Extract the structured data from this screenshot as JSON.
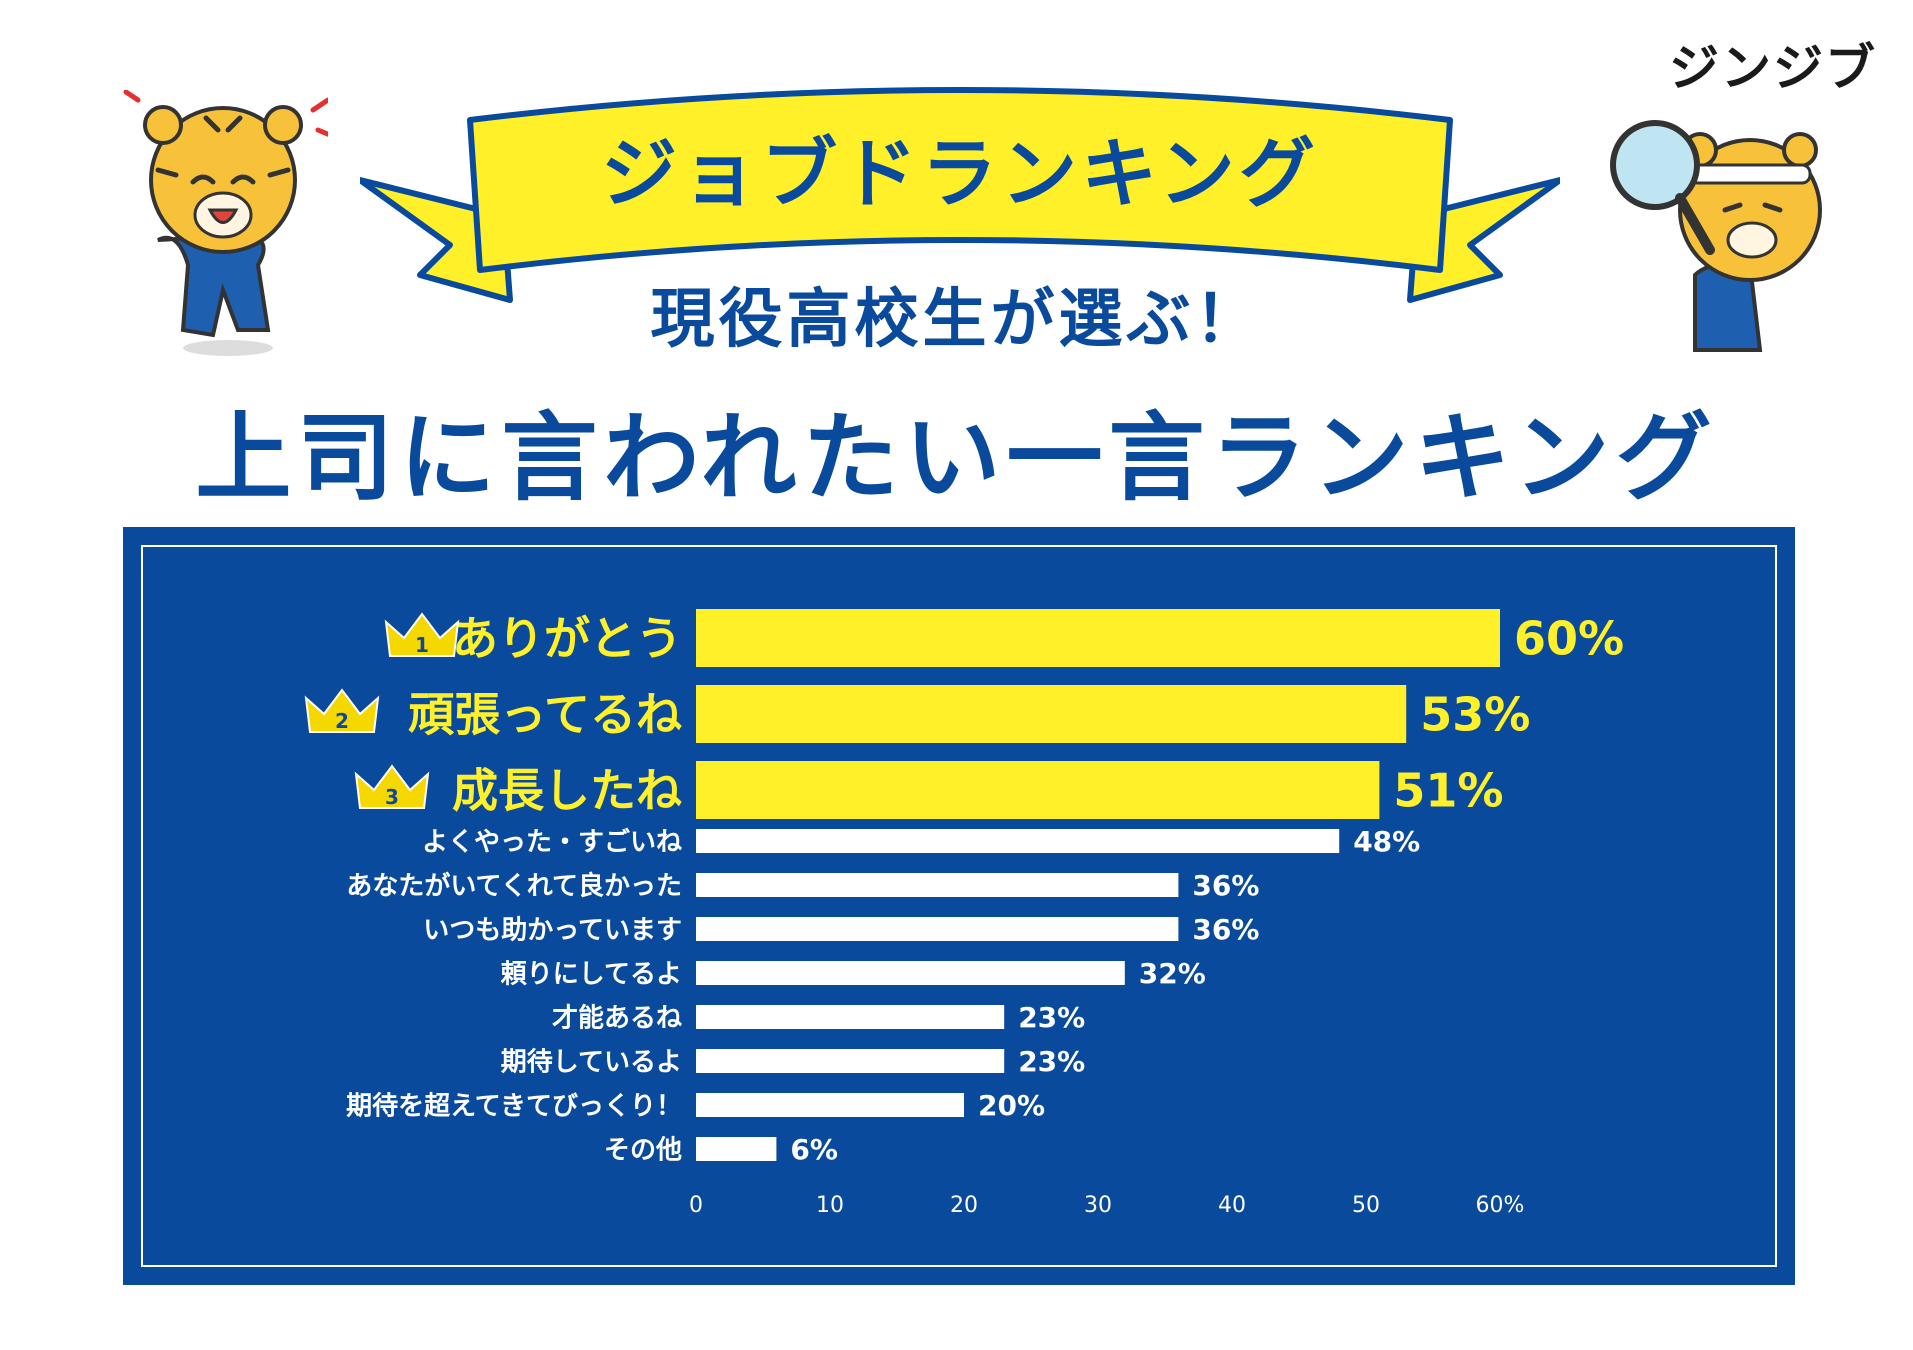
{
  "brand": "ジンジブ",
  "banner": {
    "text": "ジョブドランキング"
  },
  "subtitle": "現役高校生が選ぶ！",
  "title": "上司に言われたい一言ランキング",
  "colors": {
    "navy": "#0a4a9c",
    "yellow": "#fff02a",
    "white": "#ffffff",
    "crown": "#f5d800"
  },
  "chart_data": {
    "type": "bar",
    "orientation": "horizontal",
    "categories": [
      "ありがとう",
      "頑張ってるね",
      "成長したね",
      "よくやった・すごいね",
      "あなたがいてくれて良かった",
      "いつも助かっています",
      "頼りにしてるよ",
      "才能あるね",
      "期待しているよ",
      "期待を超えてきてびっくり！",
      "その他"
    ],
    "values": [
      60,
      53,
      51,
      48,
      36,
      36,
      32,
      23,
      23,
      20,
      6
    ],
    "value_labels": [
      "60%",
      "53%",
      "51%",
      "48%",
      "36%",
      "36%",
      "32%",
      "23%",
      "23%",
      "20%",
      "6%"
    ],
    "rank_badges": [
      "1",
      "2",
      "3"
    ],
    "x_ticks": [
      "0",
      "10",
      "20",
      "30",
      "40",
      "50",
      "60%"
    ],
    "xlim": [
      0,
      60
    ],
    "grid": false,
    "top_colors": {
      "top3": "#fff02a",
      "others": "#ffffff"
    }
  }
}
